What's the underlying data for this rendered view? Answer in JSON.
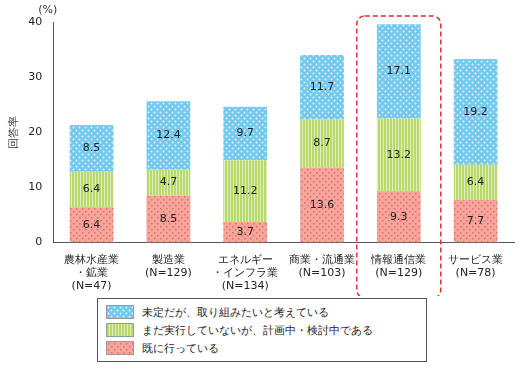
{
  "chart_data": {
    "type": "bar",
    "y_unit_label": "(%)",
    "y_label": "回答率",
    "categories": [
      "農林水産業\n・鉱業\n(N=47)",
      "製造業\n(N=129)",
      "エネルギー\n・インフラ業\n(N=134)",
      "商業・流通業\n(N=103)",
      "情報通信業\n(N=129)",
      "サービス業\n(N=78)"
    ],
    "series": [
      {
        "name": "既に行っている",
        "color": "#f6a59c",
        "values": [
          6.4,
          8.5,
          3.7,
          13.6,
          9.3,
          7.7
        ]
      },
      {
        "name": "まだ実行していないが、計画中・検討中である",
        "color": "#b9d96a",
        "values": [
          6.4,
          4.7,
          11.2,
          8.7,
          13.2,
          6.4
        ]
      },
      {
        "name": "未定だが、取り組みたいと考えている",
        "color": "#72c8ee",
        "values": [
          8.5,
          12.4,
          9.7,
          11.7,
          17.1,
          19.2
        ]
      }
    ],
    "stacked": true,
    "ylim": [
      0,
      40
    ],
    "yticks": [
      0,
      10,
      20,
      30,
      40
    ],
    "grid": false,
    "data_labels": true,
    "legend": "bottom"
  }
}
